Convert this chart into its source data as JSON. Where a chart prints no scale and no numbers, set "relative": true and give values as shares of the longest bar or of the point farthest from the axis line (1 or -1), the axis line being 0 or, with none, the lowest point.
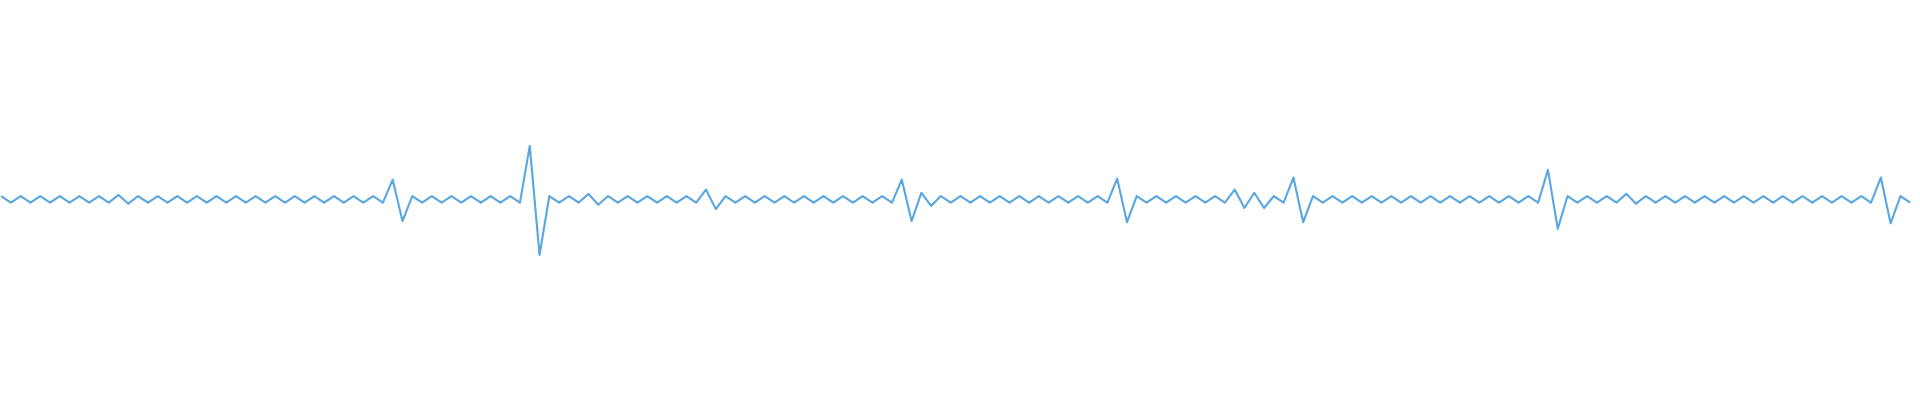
{
  "chart_data": {
    "type": "line",
    "relative": true,
    "color": "#5aa6e0",
    "categories": [
      null,
      null,
      null,
      null,
      null,
      null,
      null,
      null,
      null,
      null,
      null,
      null,
      null,
      null,
      null,
      null,
      null,
      null,
      null,
      null,
      null,
      null,
      null,
      null,
      null,
      null,
      null,
      null,
      null,
      null,
      null,
      null,
      null,
      null,
      null,
      null,
      null,
      null,
      null,
      null,
      null,
      null,
      null,
      null,
      null,
      null,
      null,
      null,
      null,
      null,
      null,
      null,
      null,
      null,
      null,
      null,
      null,
      null,
      null,
      null,
      null,
      null,
      null,
      null,
      null,
      null,
      null,
      null,
      null,
      null,
      null,
      null,
      null,
      null,
      null,
      null,
      null,
      null,
      null,
      null,
      null,
      null,
      null,
      null,
      null,
      null,
      null,
      null,
      null,
      null,
      null,
      null,
      null,
      null,
      null,
      null,
      null,
      null,
      null,
      null,
      null,
      null,
      null,
      null,
      null,
      null,
      null,
      null,
      null,
      null,
      null,
      null,
      null,
      null,
      null,
      null,
      null,
      null,
      null,
      null,
      null,
      null,
      null,
      null,
      null,
      null,
      null,
      null,
      null,
      null,
      null,
      null,
      null,
      null,
      null,
      null,
      null,
      null,
      null,
      null,
      null,
      null,
      null,
      null,
      null,
      null,
      null,
      null,
      null,
      null,
      null,
      null,
      null,
      null,
      null,
      null,
      null,
      null,
      null,
      null,
      null,
      null,
      null,
      null,
      null,
      null,
      null,
      null,
      null,
      null,
      null,
      null,
      null,
      null,
      null,
      null,
      null,
      null,
      null,
      null,
      null,
      null,
      null,
      null,
      null,
      null,
      null,
      null,
      null,
      null,
      null,
      null,
      null,
      null,
      null,
      null
    ],
    "values": [
      0.54,
      0.48,
      0.54,
      0.48,
      0.54,
      0.48,
      0.54,
      0.48,
      0.54,
      0.48,
      0.54,
      0.48,
      0.55,
      0.47,
      0.54,
      0.48,
      0.54,
      0.48,
      0.54,
      0.48,
      0.54,
      0.48,
      0.54,
      0.48,
      0.54,
      0.48,
      0.54,
      0.48,
      0.54,
      0.48,
      0.54,
      0.48,
      0.54,
      0.48,
      0.54,
      0.48,
      0.54,
      0.48,
      0.54,
      0.48,
      0.69,
      0.31,
      0.54,
      0.48,
      0.54,
      0.48,
      0.54,
      0.48,
      0.54,
      0.48,
      0.54,
      0.48,
      0.54,
      0.48,
      1,
      0,
      0.54,
      0.48,
      0.54,
      0.48,
      0.56,
      0.46,
      0.54,
      0.48,
      0.54,
      0.48,
      0.54,
      0.48,
      0.54,
      0.48,
      0.54,
      0.48,
      0.6,
      0.42,
      0.54,
      0.48,
      0.54,
      0.48,
      0.54,
      0.48,
      0.54,
      0.48,
      0.54,
      0.48,
      0.54,
      0.48,
      0.54,
      0.48,
      0.54,
      0.48,
      0.54,
      0.48,
      0.69,
      0.31,
      0.57,
      0.45,
      0.54,
      0.48,
      0.54,
      0.48,
      0.54,
      0.48,
      0.54,
      0.48,
      0.54,
      0.48,
      0.54,
      0.48,
      0.54,
      0.48,
      0.54,
      0.48,
      0.54,
      0.48,
      0.7,
      0.3,
      0.54,
      0.48,
      0.54,
      0.48,
      0.54,
      0.48,
      0.54,
      0.48,
      0.54,
      0.48,
      0.6,
      0.43,
      0.57,
      0.43,
      0.54,
      0.48,
      0.71,
      0.3,
      0.54,
      0.48,
      0.54,
      0.48,
      0.54,
      0.48,
      0.54,
      0.48,
      0.54,
      0.48,
      0.54,
      0.48,
      0.54,
      0.48,
      0.54,
      0.48,
      0.54,
      0.48,
      0.54,
      0.48,
      0.54,
      0.48,
      0.54,
      0.48,
      0.78,
      0.24,
      0.54,
      0.48,
      0.54,
      0.48,
      0.54,
      0.48,
      0.56,
      0.47,
      0.54,
      0.48,
      0.54,
      0.48,
      0.54,
      0.48,
      0.54,
      0.48,
      0.54,
      0.48,
      0.54,
      0.48,
      0.54,
      0.48,
      0.54,
      0.48,
      0.54,
      0.48,
      0.54,
      0.48,
      0.54,
      0.48,
      0.54,
      0.48,
      0.71,
      0.29,
      0.54,
      0.48
    ]
  }
}
